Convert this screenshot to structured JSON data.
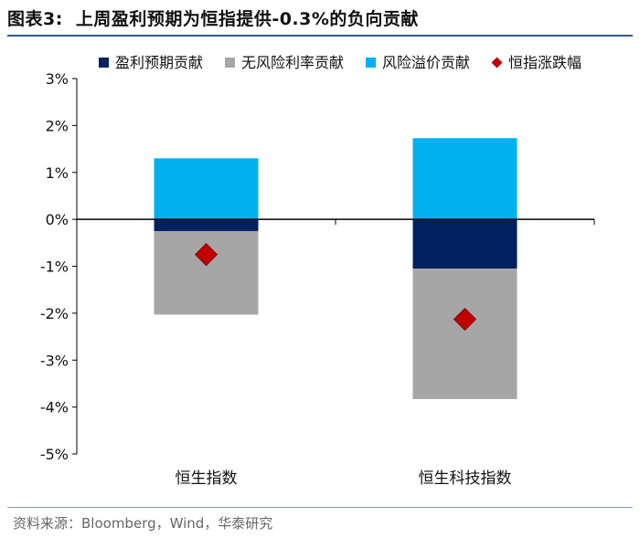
{
  "figure": {
    "number": "图表3:",
    "title": "上周盈利预期为恒指提供-0.3%的负向贡献"
  },
  "source": "资料来源：Bloomberg，Wind，华泰研究",
  "colors": {
    "earnings": "#002060",
    "riskfree": "#a6a6a6",
    "premium": "#00b0f0",
    "index": "#c00000",
    "rule": "#2f5c8a"
  },
  "chart_data": {
    "type": "bar",
    "stacked": true,
    "categories": [
      "恒生指数",
      "恒生科技指数"
    ],
    "series": [
      {
        "name": "盈利预期贡献",
        "kind": "bar",
        "color": "#002060",
        "values": [
          -0.25,
          -1.05
        ]
      },
      {
        "name": "无风险利率贡献",
        "kind": "bar",
        "color": "#a6a6a6",
        "values": [
          -1.78,
          -2.78
        ]
      },
      {
        "name": "风险溢价贡献",
        "kind": "bar",
        "color": "#00b0f0",
        "values": [
          1.3,
          1.73
        ]
      },
      {
        "name": "恒指涨跌幅",
        "kind": "marker",
        "color": "#c00000",
        "values": [
          -0.75,
          -2.13
        ]
      }
    ],
    "ylim": [
      -5,
      3
    ],
    "yticks": [
      3,
      2,
      1,
      0,
      -1,
      -2,
      -3,
      -4,
      -5
    ],
    "ytick_labels": [
      "3%",
      "2%",
      "1%",
      "0%",
      "-1%",
      "-2%",
      "-3%",
      "-4%",
      "-5%"
    ],
    "legend_position": "top",
    "grid": false
  }
}
